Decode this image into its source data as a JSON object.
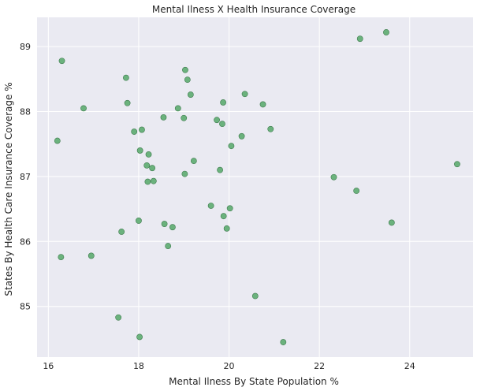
{
  "chart_data": {
    "type": "scatter",
    "title": "Mental Ilness X Health Insurance Coverage",
    "xlabel": "Mental Ilness By State Population %",
    "ylabel": "States By Health Care Insurance Coverage %",
    "xlim": [
      15.75,
      25.4
    ],
    "ylim": [
      84.22,
      89.45
    ],
    "xticks": [
      16,
      18,
      20,
      22,
      24
    ],
    "yticks": [
      85,
      86,
      87,
      88,
      89
    ],
    "grid": true,
    "colors": {
      "background": "#EAEAF2",
      "grid": "#FFFFFF",
      "point": "#55A868"
    },
    "points": [
      {
        "x": 16.2,
        "y": 87.55
      },
      {
        "x": 16.3,
        "y": 88.78
      },
      {
        "x": 16.28,
        "y": 85.76
      },
      {
        "x": 16.78,
        "y": 88.05
      },
      {
        "x": 16.95,
        "y": 85.78
      },
      {
        "x": 17.55,
        "y": 84.83
      },
      {
        "x": 17.62,
        "y": 86.15
      },
      {
        "x": 17.72,
        "y": 88.52
      },
      {
        "x": 17.75,
        "y": 88.13
      },
      {
        "x": 17.9,
        "y": 87.69
      },
      {
        "x": 18.0,
        "y": 86.32
      },
      {
        "x": 18.02,
        "y": 84.53
      },
      {
        "x": 18.03,
        "y": 87.4
      },
      {
        "x": 18.07,
        "y": 87.72
      },
      {
        "x": 18.18,
        "y": 87.17
      },
      {
        "x": 18.2,
        "y": 86.92
      },
      {
        "x": 18.22,
        "y": 87.34
      },
      {
        "x": 18.3,
        "y": 87.13
      },
      {
        "x": 18.33,
        "y": 86.93
      },
      {
        "x": 18.55,
        "y": 87.91
      },
      {
        "x": 18.57,
        "y": 86.27
      },
      {
        "x": 18.65,
        "y": 85.93
      },
      {
        "x": 18.75,
        "y": 86.22
      },
      {
        "x": 18.87,
        "y": 88.05
      },
      {
        "x": 19.0,
        "y": 87.9
      },
      {
        "x": 19.02,
        "y": 87.04
      },
      {
        "x": 19.03,
        "y": 88.64
      },
      {
        "x": 19.08,
        "y": 88.49
      },
      {
        "x": 19.15,
        "y": 88.26
      },
      {
        "x": 19.22,
        "y": 87.24
      },
      {
        "x": 19.6,
        "y": 86.55
      },
      {
        "x": 19.73,
        "y": 87.87
      },
      {
        "x": 19.8,
        "y": 87.1
      },
      {
        "x": 19.85,
        "y": 87.81
      },
      {
        "x": 19.87,
        "y": 88.14
      },
      {
        "x": 19.88,
        "y": 86.39
      },
      {
        "x": 19.95,
        "y": 86.2
      },
      {
        "x": 20.02,
        "y": 86.51
      },
      {
        "x": 20.05,
        "y": 87.47
      },
      {
        "x": 20.28,
        "y": 87.62
      },
      {
        "x": 20.35,
        "y": 88.27
      },
      {
        "x": 20.58,
        "y": 85.16
      },
      {
        "x": 20.75,
        "y": 88.11
      },
      {
        "x": 20.92,
        "y": 87.73
      },
      {
        "x": 21.2,
        "y": 84.45
      },
      {
        "x": 22.32,
        "y": 86.99
      },
      {
        "x": 22.82,
        "y": 86.78
      },
      {
        "x": 22.9,
        "y": 89.12
      },
      {
        "x": 23.48,
        "y": 89.22
      },
      {
        "x": 23.6,
        "y": 86.29
      },
      {
        "x": 25.05,
        "y": 87.19
      }
    ]
  }
}
